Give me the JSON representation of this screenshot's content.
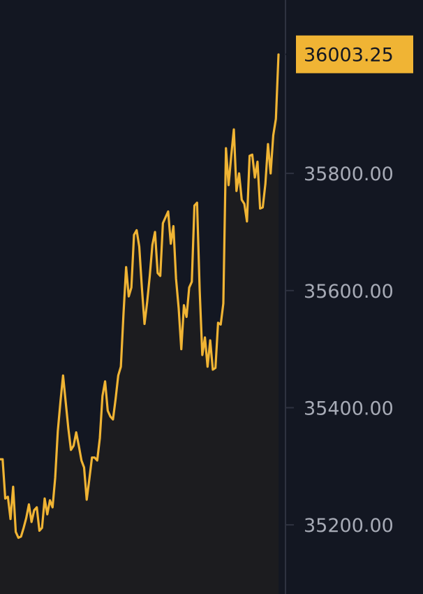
{
  "chart_data": {
    "type": "line",
    "title": "",
    "xlabel": "",
    "ylabel": "",
    "ylim": [
      35082,
      36096
    ],
    "y_ticks": [
      35200,
      35400,
      35600,
      35800
    ],
    "y_tick_labels": [
      "35200.00",
      "35400.00",
      "35600.00",
      "35800.00"
    ],
    "grid": false,
    "area_fill": true,
    "current_price": 36003.25,
    "current_price_label": "36003.25",
    "colors": {
      "background": "#131722",
      "line": "#f0b434",
      "area": "#1c1c1f",
      "axis": "#2e3240",
      "tick_text": "#a7abb6",
      "price_tag_bg": "#f0b434",
      "price_tag_text": "#131722"
    },
    "series": [
      {
        "values": [
          35312,
          35312,
          35245,
          35248,
          35210,
          35265,
          35188,
          35178,
          35180,
          35195,
          35212,
          35235,
          35205,
          35225,
          35230,
          35190,
          35195,
          35245,
          35218,
          35242,
          35230,
          35280,
          35360,
          35410,
          35455,
          35410,
          35365,
          35328,
          35335,
          35358,
          35335,
          35310,
          35298,
          35243,
          35278,
          35315,
          35315,
          35310,
          35348,
          35420,
          35445,
          35395,
          35385,
          35380,
          35415,
          35455,
          35470,
          35560,
          35640,
          35590,
          35605,
          35695,
          35703,
          35675,
          35605,
          35543,
          35580,
          35625,
          35678,
          35700,
          35630,
          35625,
          35715,
          35725,
          35735,
          35680,
          35710,
          35620,
          35570,
          35500,
          35575,
          35555,
          35605,
          35615,
          35745,
          35750,
          35600,
          35490,
          35520,
          35470,
          35515,
          35465,
          35468,
          35545,
          35542,
          35578,
          35843,
          35780,
          35830,
          35875,
          35770,
          35800,
          35755,
          35748,
          35718,
          35830,
          35832,
          35793,
          35820,
          35740,
          35742,
          35782,
          35850,
          35800,
          35865,
          35893,
          36003
        ]
      }
    ]
  }
}
